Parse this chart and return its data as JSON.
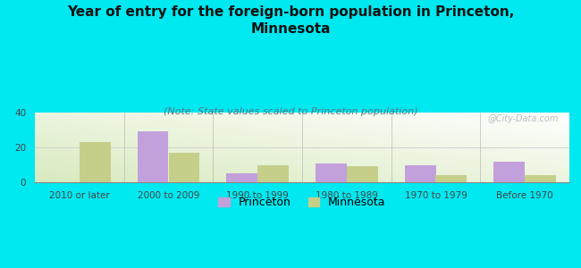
{
  "title": "Year of entry for the foreign-born population in Princeton,\nMinnesota",
  "subtitle": "(Note: State values scaled to Princeton population)",
  "categories": [
    "2010 or later",
    "2000 to 2009",
    "1990 to 1999",
    "1980 to 1989",
    "1970 to 1979",
    "Before 1970"
  ],
  "princeton_values": [
    0,
    29,
    5,
    11,
    10,
    12
  ],
  "minnesota_values": [
    23,
    17,
    10,
    9,
    4,
    4
  ],
  "princeton_color": "#c2a0dc",
  "minnesota_color": "#c5cf8a",
  "background_color": "#00e8f0",
  "ylim": [
    0,
    40
  ],
  "yticks": [
    0,
    20,
    40
  ],
  "bar_width": 0.35,
  "title_fontsize": 11,
  "subtitle_fontsize": 8,
  "tick_fontsize": 7.5,
  "legend_fontsize": 9,
  "watermark": "@City-Data.com"
}
